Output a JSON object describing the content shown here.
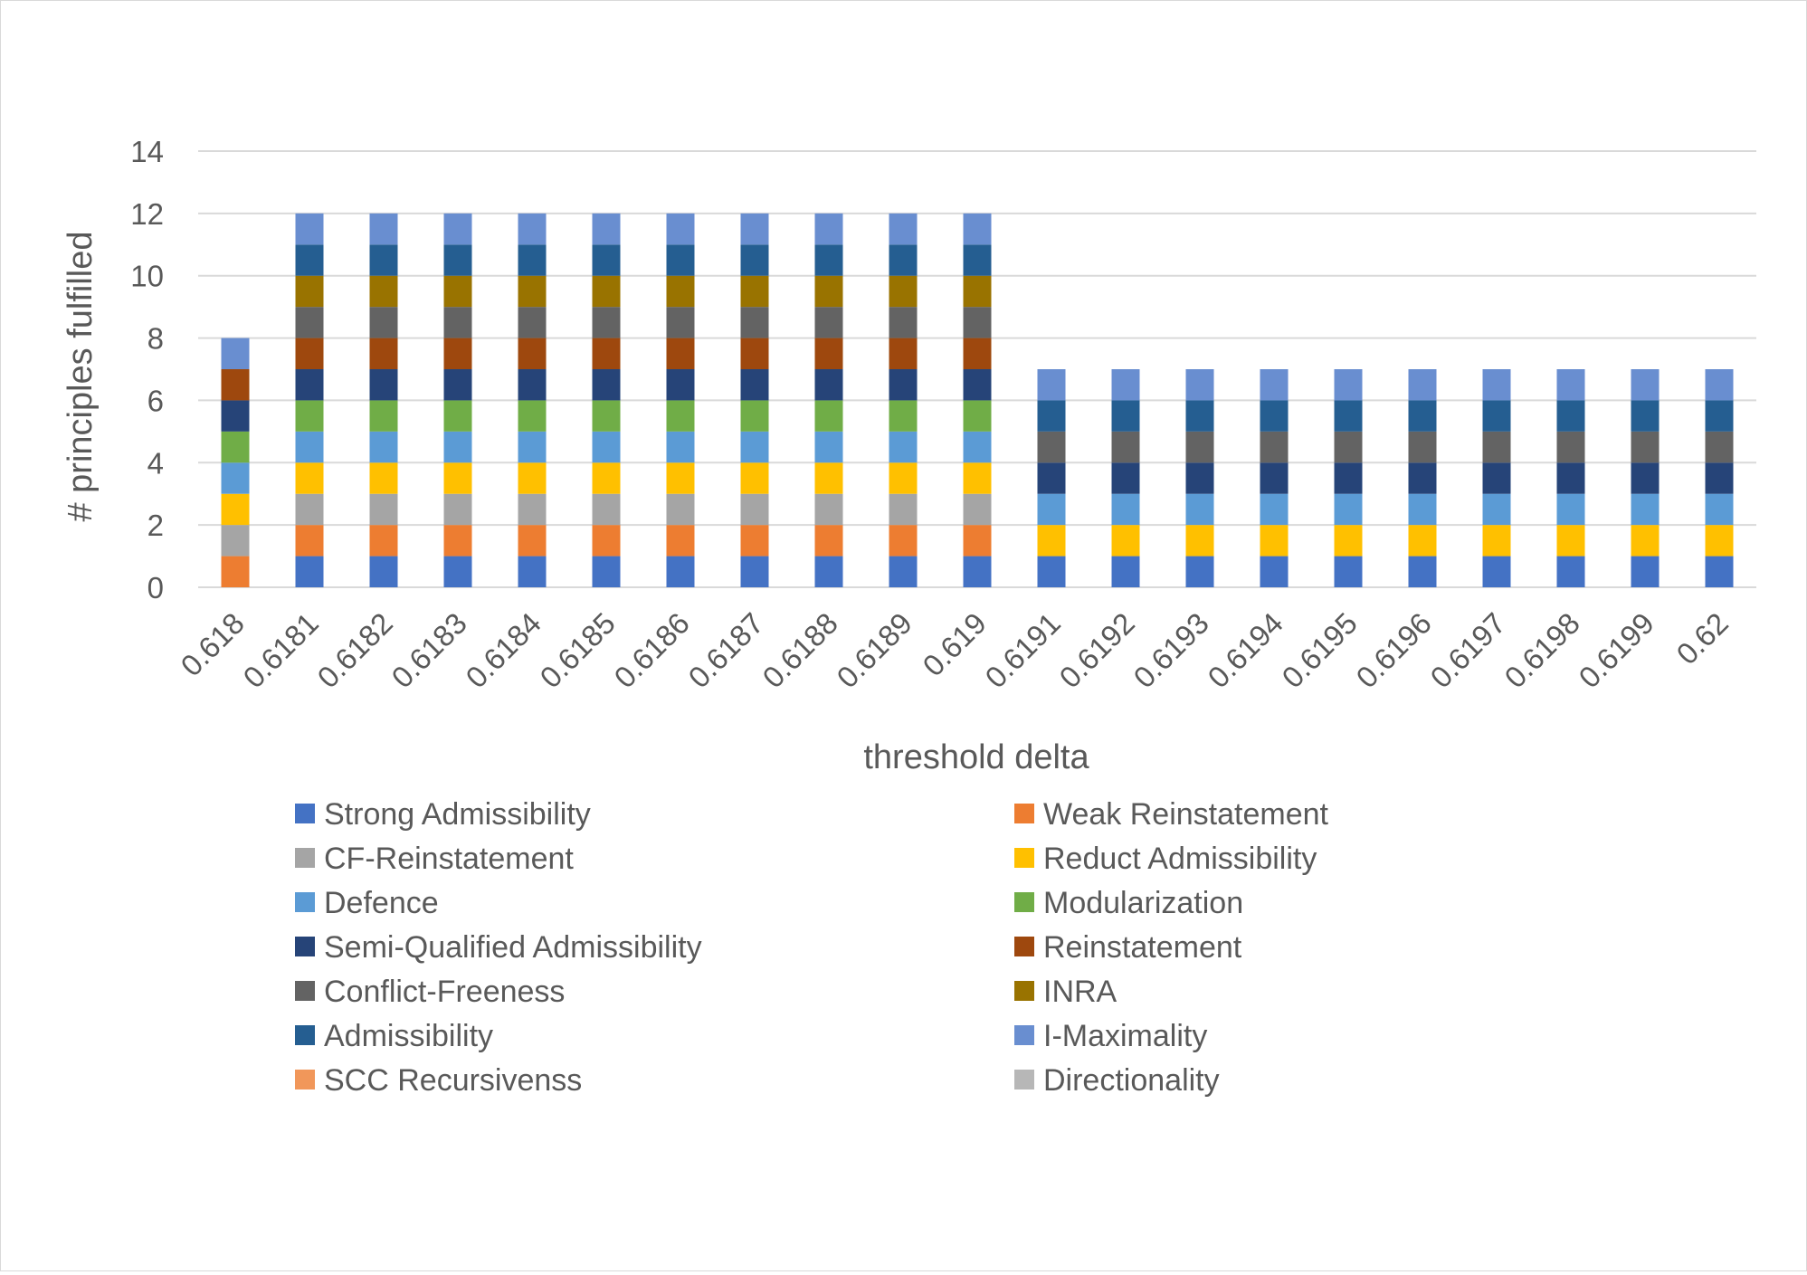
{
  "chart_data": {
    "type": "bar",
    "stacked": true,
    "title": "",
    "xlabel": "threshold delta",
    "ylabel": "# principles fulfilled",
    "ylim": [
      0,
      14
    ],
    "yticks": [
      0,
      2,
      4,
      6,
      8,
      10,
      12,
      14
    ],
    "grid": true,
    "legend_position": "bottom",
    "categories": [
      "0.618",
      "0.6181",
      "0.6182",
      "0.6183",
      "0.6184",
      "0.6185",
      "0.6186",
      "0.6187",
      "0.6188",
      "0.6189",
      "0.619",
      "0.6191",
      "0.6192",
      "0.6193",
      "0.6194",
      "0.6195",
      "0.6196",
      "0.6197",
      "0.6198",
      "0.6199",
      "0.62"
    ],
    "series": [
      {
        "name": "Strong Admissibility",
        "color": "#4472C4",
        "values": [
          0,
          1,
          1,
          1,
          1,
          1,
          1,
          1,
          1,
          1,
          1,
          1,
          1,
          1,
          1,
          1,
          1,
          1,
          1,
          1,
          1
        ]
      },
      {
        "name": "Weak Reinstatement",
        "color": "#ED7D31",
        "values": [
          1,
          1,
          1,
          1,
          1,
          1,
          1,
          1,
          1,
          1,
          1,
          0,
          0,
          0,
          0,
          0,
          0,
          0,
          0,
          0,
          0
        ]
      },
      {
        "name": "CF-Reinstatement",
        "color": "#A5A5A5",
        "values": [
          1,
          1,
          1,
          1,
          1,
          1,
          1,
          1,
          1,
          1,
          1,
          0,
          0,
          0,
          0,
          0,
          0,
          0,
          0,
          0,
          0
        ]
      },
      {
        "name": "Reduct Admissibility",
        "color": "#FFC000",
        "values": [
          1,
          1,
          1,
          1,
          1,
          1,
          1,
          1,
          1,
          1,
          1,
          1,
          1,
          1,
          1,
          1,
          1,
          1,
          1,
          1,
          1
        ]
      },
      {
        "name": "Defence",
        "color": "#5B9BD5",
        "values": [
          1,
          1,
          1,
          1,
          1,
          1,
          1,
          1,
          1,
          1,
          1,
          1,
          1,
          1,
          1,
          1,
          1,
          1,
          1,
          1,
          1
        ]
      },
      {
        "name": "Modularization",
        "color": "#70AD47",
        "values": [
          1,
          1,
          1,
          1,
          1,
          1,
          1,
          1,
          1,
          1,
          1,
          0,
          0,
          0,
          0,
          0,
          0,
          0,
          0,
          0,
          0
        ]
      },
      {
        "name": "Semi-Qualified Admissibility",
        "color": "#264478",
        "values": [
          1,
          1,
          1,
          1,
          1,
          1,
          1,
          1,
          1,
          1,
          1,
          1,
          1,
          1,
          1,
          1,
          1,
          1,
          1,
          1,
          1
        ]
      },
      {
        "name": "Reinstatement",
        "color": "#9E480E",
        "values": [
          1,
          1,
          1,
          1,
          1,
          1,
          1,
          1,
          1,
          1,
          1,
          0,
          0,
          0,
          0,
          0,
          0,
          0,
          0,
          0,
          0
        ]
      },
      {
        "name": "Conflict-Freeness",
        "color": "#636363",
        "values": [
          0,
          1,
          1,
          1,
          1,
          1,
          1,
          1,
          1,
          1,
          1,
          1,
          1,
          1,
          1,
          1,
          1,
          1,
          1,
          1,
          1
        ]
      },
      {
        "name": "INRA",
        "color": "#997300",
        "values": [
          0,
          1,
          1,
          1,
          1,
          1,
          1,
          1,
          1,
          1,
          1,
          0,
          0,
          0,
          0,
          0,
          0,
          0,
          0,
          0,
          0
        ]
      },
      {
        "name": "Admissibility",
        "color": "#255E91",
        "values": [
          0,
          1,
          1,
          1,
          1,
          1,
          1,
          1,
          1,
          1,
          1,
          1,
          1,
          1,
          1,
          1,
          1,
          1,
          1,
          1,
          1
        ]
      },
      {
        "name": "I-Maximality",
        "color": "#698ED0",
        "values": [
          1,
          1,
          1,
          1,
          1,
          1,
          1,
          1,
          1,
          1,
          1,
          1,
          1,
          1,
          1,
          1,
          1,
          1,
          1,
          1,
          1
        ]
      },
      {
        "name": "SCC Recursivenss",
        "color": "#F1975A",
        "values": [
          0,
          0,
          0,
          0,
          0,
          0,
          0,
          0,
          0,
          0,
          0,
          0,
          0,
          0,
          0,
          0,
          0,
          0,
          0,
          0,
          0
        ]
      },
      {
        "name": "Directionality",
        "color": "#B7B7B7",
        "values": [
          0,
          0,
          0,
          0,
          0,
          0,
          0,
          0,
          0,
          0,
          0,
          0,
          0,
          0,
          0,
          0,
          0,
          0,
          0,
          0,
          0
        ]
      }
    ]
  }
}
